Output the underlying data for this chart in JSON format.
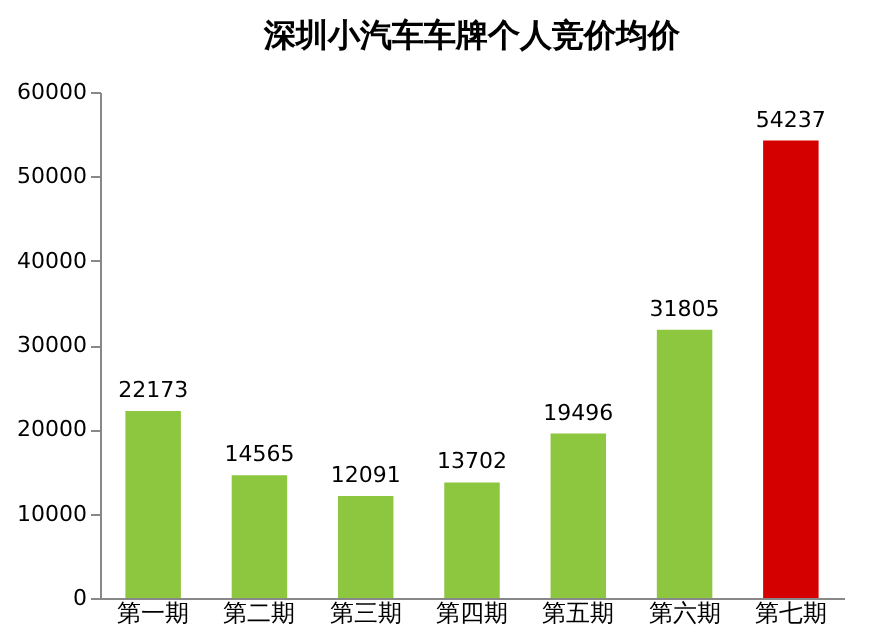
{
  "chart_data": {
    "type": "bar",
    "title": "深圳小汽车车牌个人竞价均价",
    "categories": [
      "第一期",
      "第二期",
      "第三期",
      "第四期",
      "第五期",
      "第六期",
      "第七期"
    ],
    "values": [
      22173,
      14565,
      12091,
      13702,
      19496,
      31805,
      54237
    ],
    "colors": [
      "#8dc63f",
      "#8dc63f",
      "#8dc63f",
      "#8dc63f",
      "#8dc63f",
      "#8dc63f",
      "#d40000"
    ],
    "ylim": [
      0,
      60000
    ],
    "yticks": [
      0,
      10000,
      20000,
      30000,
      40000,
      50000,
      60000
    ],
    "grid": false,
    "data_labels": true
  }
}
